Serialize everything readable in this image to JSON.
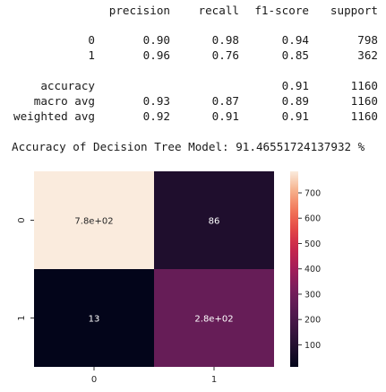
{
  "report": {
    "headers": [
      "precision",
      "recall",
      "f1-score",
      "support"
    ],
    "rows": [
      {
        "label": "0",
        "precision": "0.90",
        "recall": "0.98",
        "f1": "0.94",
        "support": "798"
      },
      {
        "label": "1",
        "precision": "0.96",
        "recall": "0.76",
        "f1": "0.85",
        "support": "362"
      },
      {
        "label": "accuracy",
        "precision": "",
        "recall": "",
        "f1": "0.91",
        "support": "1160"
      },
      {
        "label": "macro avg",
        "precision": "0.93",
        "recall": "0.87",
        "f1": "0.89",
        "support": "1160"
      },
      {
        "label": "weighted avg",
        "precision": "0.92",
        "recall": "0.91",
        "f1": "0.91",
        "support": "1160"
      }
    ]
  },
  "accuracy_line": "Accuracy of Decision Tree Model: 91.46551724137932 %",
  "chart_data": {
    "type": "heatmap",
    "x_categories": [
      "0",
      "1"
    ],
    "y_categories": [
      "0",
      "1"
    ],
    "values": [
      [
        785,
        86
      ],
      [
        13,
        276
      ]
    ],
    "cell_labels": [
      [
        "7.8e+02",
        "86"
      ],
      [
        "13",
        "2.8e+02"
      ]
    ],
    "colorbar": {
      "min": 13,
      "max": 785,
      "ticks": [
        100,
        200,
        300,
        400,
        500,
        600,
        700
      ]
    },
    "colormap": "rocket",
    "colors": {
      "low": "#03051a",
      "high": "#faebdd",
      "text_dark": "#262626",
      "text_light": "#ffffff"
    }
  }
}
